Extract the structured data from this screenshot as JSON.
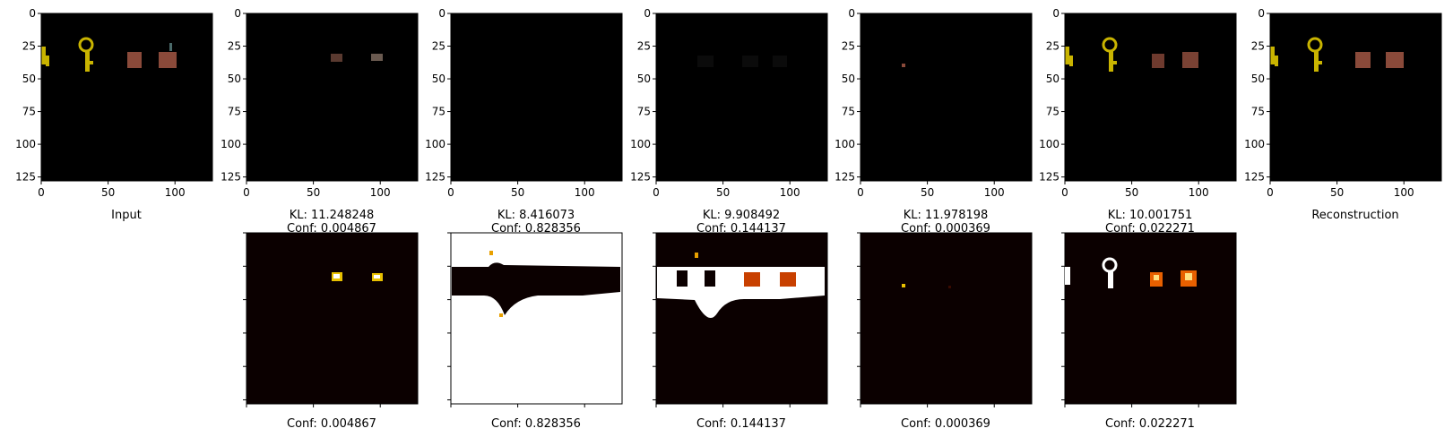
{
  "chart_data": [
    {
      "type": "image",
      "panel": "input",
      "xlabel": "Input",
      "xticks": [
        0,
        50,
        100
      ],
      "yticks": [
        0,
        25,
        50,
        75,
        100,
        125
      ],
      "xlim": [
        0,
        128
      ],
      "ylim": [
        128,
        0
      ],
      "colors": {
        "key": "#c9b400",
        "box": "#8a4a3a"
      }
    },
    {
      "type": "image",
      "panel": "slot-1",
      "xlabel_kl": "KL: 11.248248",
      "xlabel_conf": "Conf: 0.004867",
      "xticks": [
        0,
        50,
        100
      ],
      "yticks": [
        0,
        25,
        50,
        75,
        100,
        125
      ]
    },
    {
      "type": "image",
      "panel": "slot-2",
      "xlabel_kl": "KL: 8.416073",
      "xlabel_conf": "Conf: 0.828356",
      "xticks": [
        0,
        50,
        100
      ],
      "yticks": [
        0,
        25,
        50,
        75,
        100,
        125
      ]
    },
    {
      "type": "image",
      "panel": "slot-3",
      "xlabel_kl": "KL: 9.908492",
      "xlabel_conf": "Conf: 0.144137",
      "xticks": [
        0,
        50,
        100
      ],
      "yticks": [
        0,
        25,
        50,
        75,
        100,
        125
      ]
    },
    {
      "type": "image",
      "panel": "slot-4",
      "xlabel_kl": "KL: 11.978198",
      "xlabel_conf": "Conf: 0.000369",
      "xticks": [
        0,
        50,
        100
      ],
      "yticks": [
        0,
        25,
        50,
        75,
        100,
        125
      ]
    },
    {
      "type": "image",
      "panel": "slot-5",
      "xlabel_kl": "KL: 10.001751",
      "xlabel_conf": "Conf: 0.022271",
      "xticks": [
        0,
        50,
        100
      ],
      "yticks": [
        0,
        25,
        50,
        75,
        100,
        125
      ]
    },
    {
      "type": "image",
      "panel": "reconstruction",
      "xlabel": "Reconstruction",
      "xticks": [
        0,
        50,
        100
      ],
      "yticks": [
        0,
        25,
        50,
        75,
        100,
        125
      ]
    },
    {
      "type": "heatmap",
      "panel": "mask-1",
      "xlabel": "Conf: 0.004867",
      "colormap": "hot"
    },
    {
      "type": "heatmap",
      "panel": "mask-2",
      "xlabel": "Conf: 0.828356",
      "colormap": "hot"
    },
    {
      "type": "heatmap",
      "panel": "mask-3",
      "xlabel": "Conf: 0.144137",
      "colormap": "hot"
    },
    {
      "type": "heatmap",
      "panel": "mask-4",
      "xlabel": "Conf: 0.000369",
      "colormap": "hot"
    },
    {
      "type": "heatmap",
      "panel": "mask-5",
      "xlabel": "Conf: 0.022271",
      "colormap": "hot"
    }
  ]
}
